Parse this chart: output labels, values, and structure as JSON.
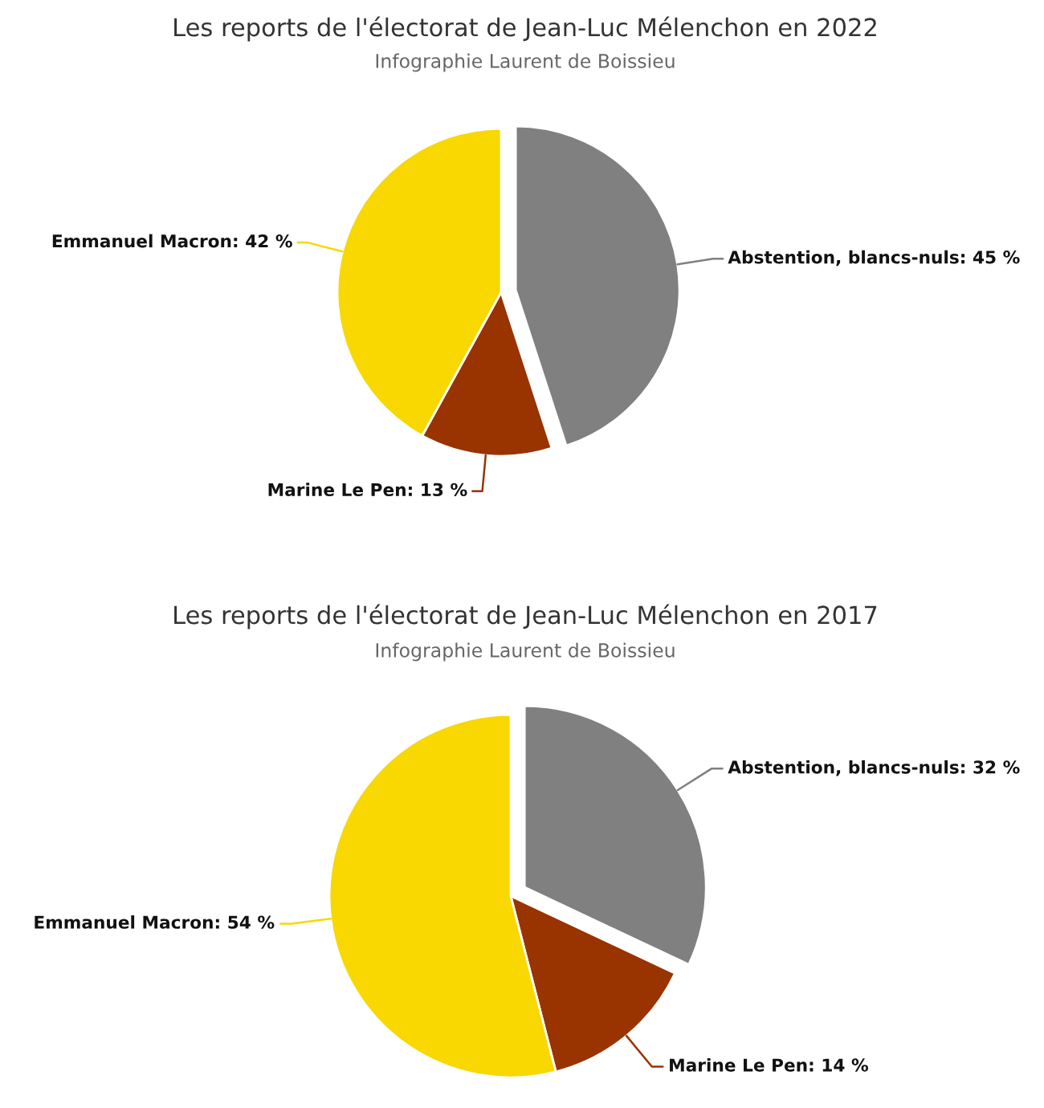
{
  "chart_data": [
    {
      "type": "pie",
      "title": "Les reports de l'électorat de Jean-Luc Mélenchon en 2022",
      "subtitle": "Infographie Laurent de Boissieu",
      "categories": [
        "Abstention, blancs-nuls",
        "Marine Le Pen",
        "Emmanuel Macron"
      ],
      "values": [
        45,
        13,
        42
      ],
      "colors": [
        "#808080",
        "#993300",
        "#f8d800"
      ],
      "value_labels": [
        "45 %",
        "13 %",
        "42 %"
      ]
    },
    {
      "type": "pie",
      "title": "Les reports de l'électorat de Jean-Luc Mélenchon en 2017",
      "subtitle": "Infographie Laurent de Boissieu",
      "categories": [
        "Abstention, blancs-nuls",
        "Marine Le Pen",
        "Emmanuel Macron"
      ],
      "values": [
        32,
        14,
        54
      ],
      "colors": [
        "#808080",
        "#993300",
        "#f8d800"
      ],
      "value_labels": [
        "32 %",
        "14 %",
        "54 %"
      ]
    }
  ]
}
